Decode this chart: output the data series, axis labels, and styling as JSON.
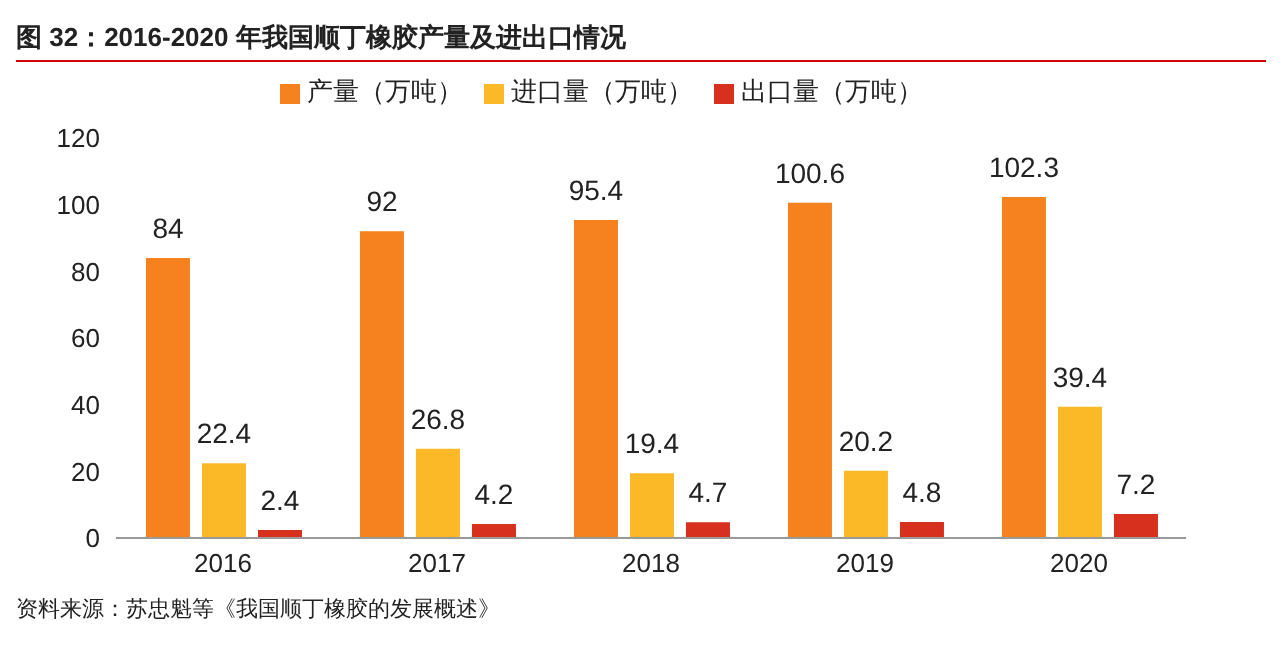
{
  "chart_data": {
    "type": "bar",
    "title": "图 32：2016-2020 年我国顺丁橡胶产量及进出口情况",
    "categories": [
      "2016",
      "2017",
      "2018",
      "2019",
      "2020"
    ],
    "series": [
      {
        "name": "产量（万吨）",
        "color": "#f5821f",
        "values": [
          84,
          92,
          95.4,
          100.6,
          102.3
        ]
      },
      {
        "name": "进口量（万吨）",
        "color": "#fbb827",
        "values": [
          22.4,
          26.8,
          19.4,
          20.2,
          39.4
        ]
      },
      {
        "name": "出口量（万吨）",
        "color": "#d7301f",
        "values": [
          2.4,
          4.2,
          4.7,
          4.8,
          7.2
        ]
      }
    ],
    "ylim": [
      0,
      120
    ],
    "yticks": [
      0,
      20,
      40,
      60,
      80,
      100,
      120
    ],
    "grid": false,
    "legend": "top",
    "data_labels": true,
    "annotations": [
      "资料来源：苏忠魁等《我国顺丁橡胶的发展概述》"
    ]
  }
}
